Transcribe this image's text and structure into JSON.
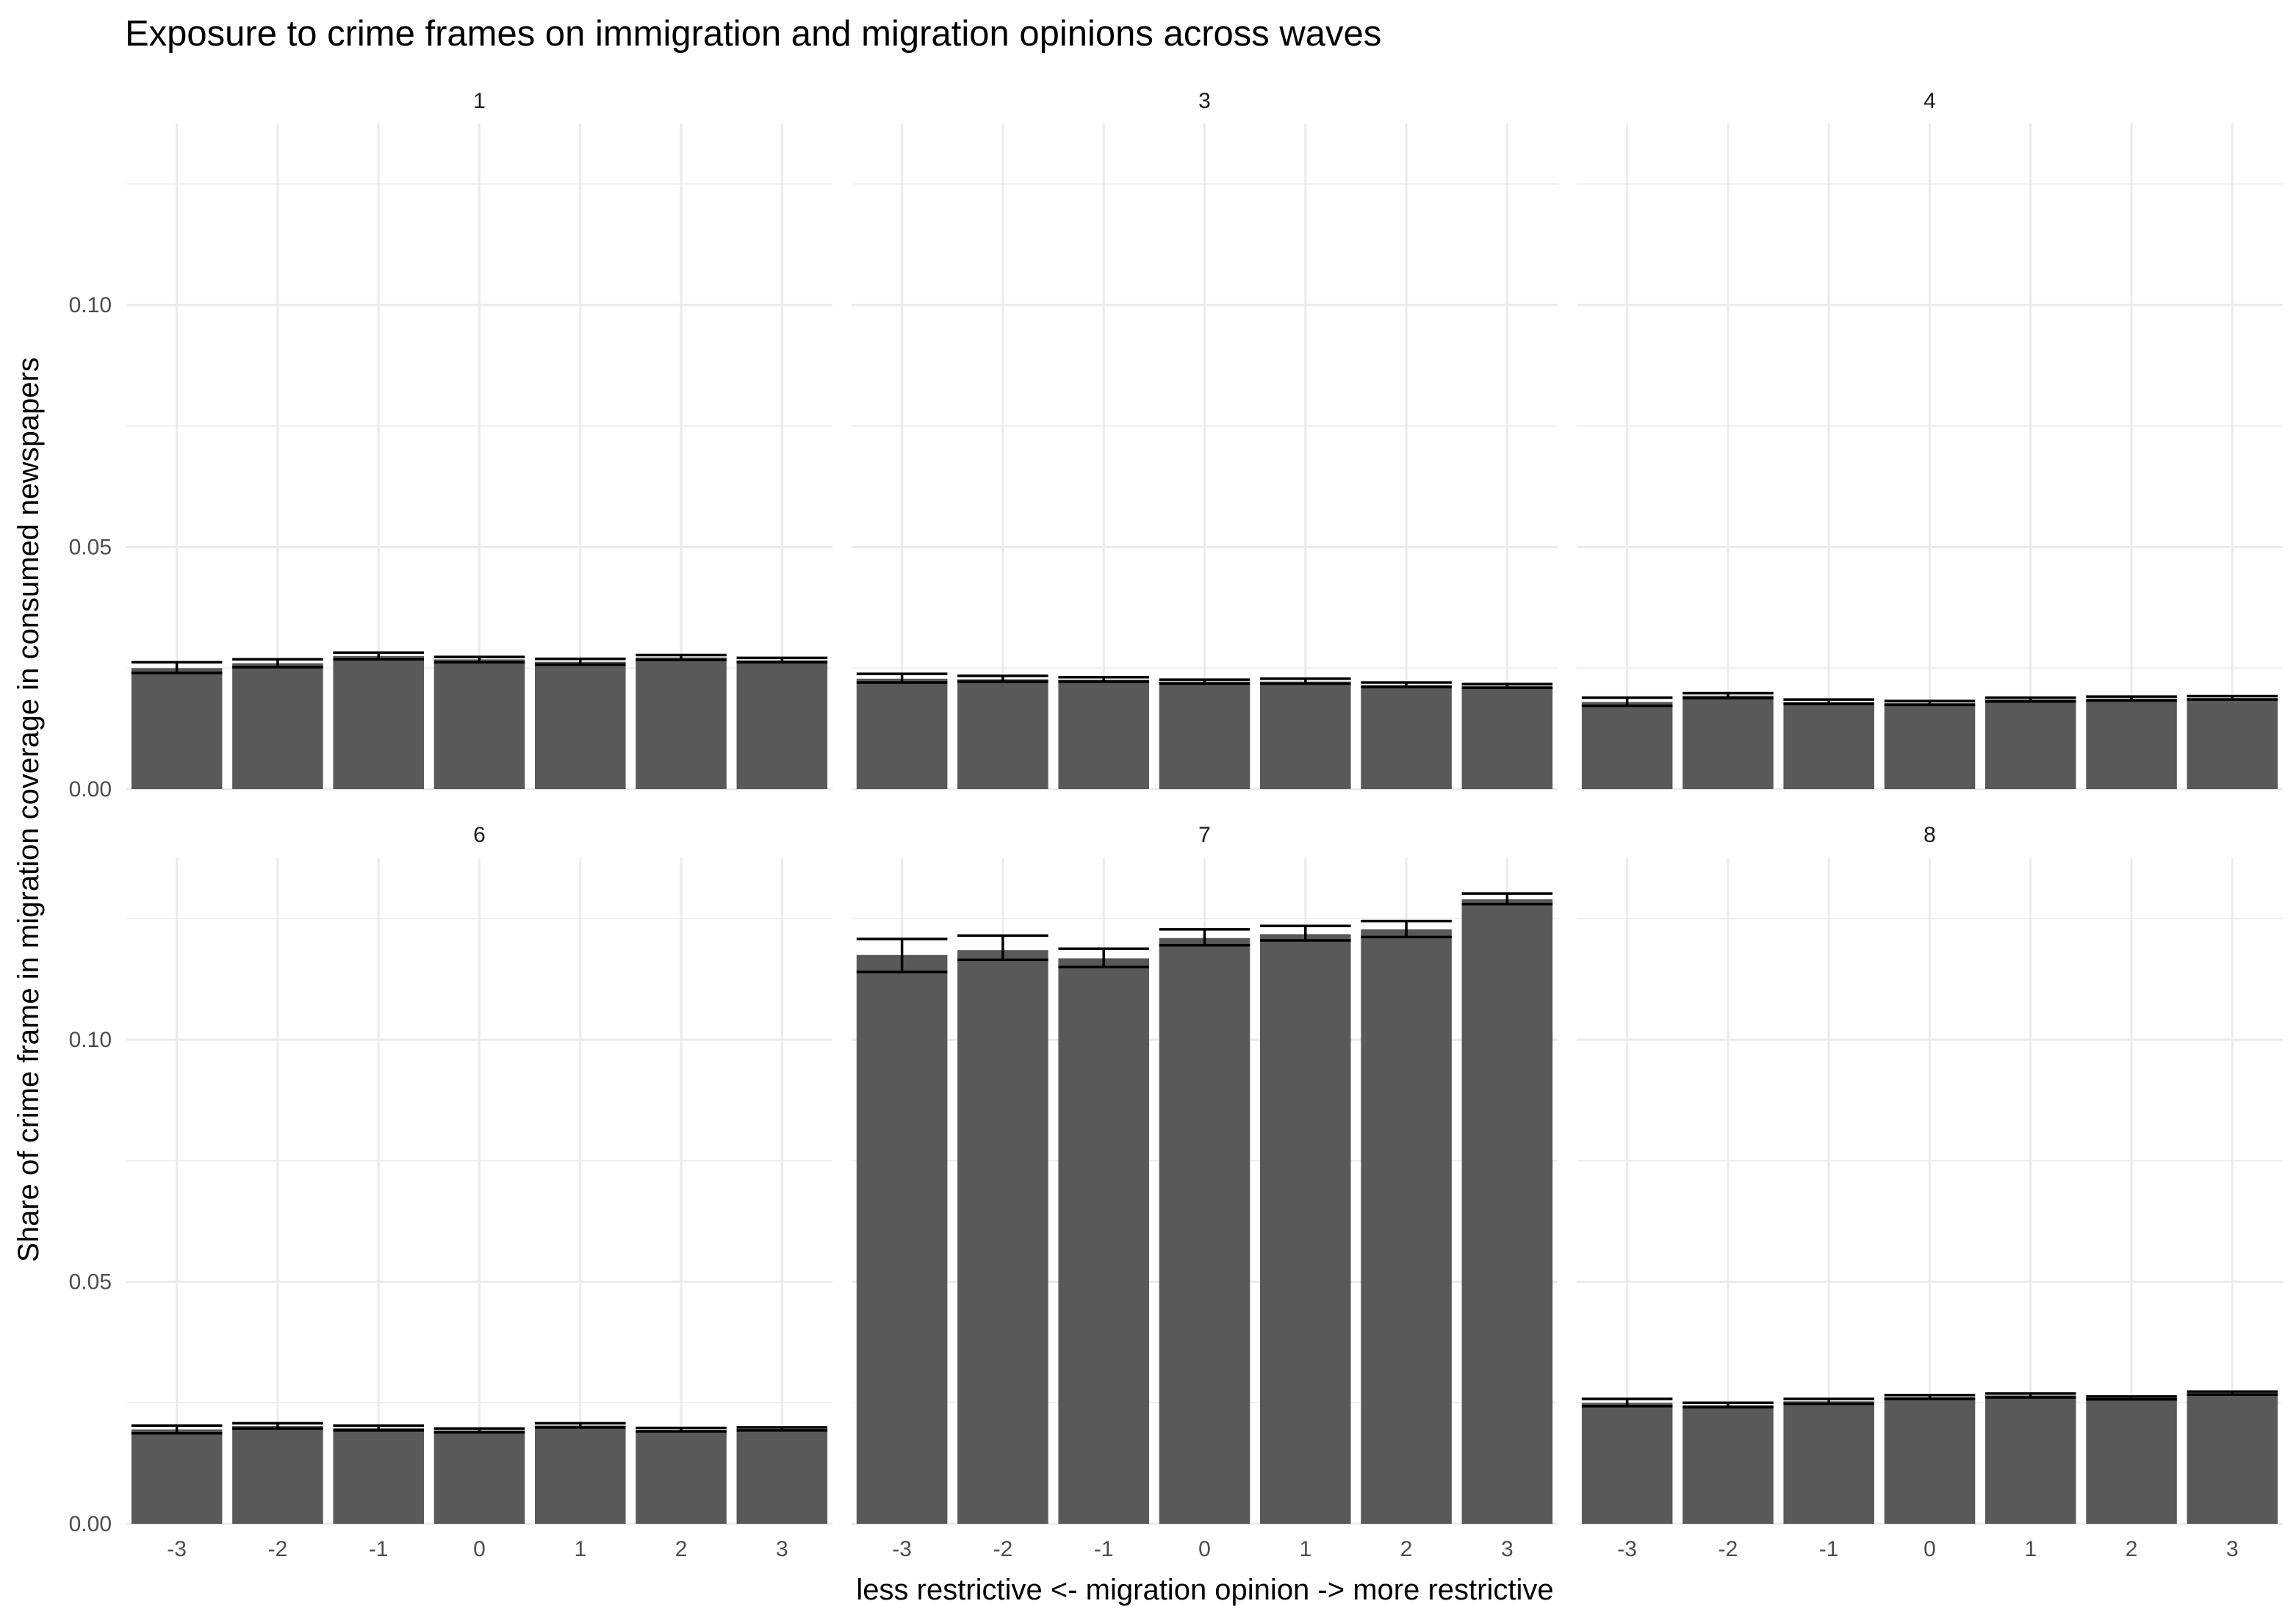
{
  "chart_data": {
    "type": "bar",
    "title": "Exposure to crime frames on immigration and migration opinions across waves",
    "xlabel": "less restrictive <- migration opinion -> more restrictive",
    "ylabel": "Share of crime frame in migration coverage in consumed newspapers",
    "categories": [
      "-3",
      "-2",
      "-1",
      "0",
      "1",
      "2",
      "3"
    ],
    "ylim": [
      0,
      0.1375
    ],
    "yticks": [
      0.0,
      0.05,
      0.1
    ],
    "ytick_labels": [
      "0.00",
      "0.05",
      "0.10"
    ],
    "grid": true,
    "facets": [
      {
        "label": "1",
        "values": [
          0.025,
          0.026,
          0.0275,
          0.0268,
          0.0263,
          0.0272,
          0.0266
        ],
        "errors": [
          [
            0.024,
            0.0262
          ],
          [
            0.0252,
            0.0268
          ],
          [
            0.0268,
            0.0282
          ],
          [
            0.0262,
            0.0273
          ],
          [
            0.0257,
            0.0269
          ],
          [
            0.0267,
            0.0277
          ],
          [
            0.0262,
            0.0271
          ]
        ]
      },
      {
        "label": "3",
        "values": [
          0.0228,
          0.0227,
          0.0226,
          0.0222,
          0.0222,
          0.0215,
          0.0213
        ],
        "errors": [
          [
            0.022,
            0.0238
          ],
          [
            0.0222,
            0.0234
          ],
          [
            0.0222,
            0.0231
          ],
          [
            0.0218,
            0.0226
          ],
          [
            0.0218,
            0.0228
          ],
          [
            0.0211,
            0.022
          ],
          [
            0.0209,
            0.0217
          ]
        ]
      },
      {
        "label": "4",
        "values": [
          0.018,
          0.0193,
          0.018,
          0.0178,
          0.0185,
          0.0187,
          0.0188
        ],
        "errors": [
          [
            0.0172,
            0.0189
          ],
          [
            0.0188,
            0.0198
          ],
          [
            0.0176,
            0.0185
          ],
          [
            0.0174,
            0.0182
          ],
          [
            0.0181,
            0.0189
          ],
          [
            0.0183,
            0.0191
          ],
          [
            0.0185,
            0.0192
          ]
        ]
      },
      {
        "label": "6",
        "values": [
          0.0195,
          0.0202,
          0.0198,
          0.0193,
          0.0203,
          0.0194,
          0.0196
        ],
        "errors": [
          [
            0.0187,
            0.0203
          ],
          [
            0.0197,
            0.0208
          ],
          [
            0.0193,
            0.0203
          ],
          [
            0.0189,
            0.0197
          ],
          [
            0.0199,
            0.0208
          ],
          [
            0.0191,
            0.0198
          ],
          [
            0.0193,
            0.0199
          ]
        ]
      },
      {
        "label": "7",
        "values": [
          0.1175,
          0.1185,
          0.1168,
          0.121,
          0.1218,
          0.1228,
          0.129
        ],
        "errors": [
          [
            0.114,
            0.1208
          ],
          [
            0.1165,
            0.1215
          ],
          [
            0.115,
            0.1188
          ],
          [
            0.1195,
            0.1228
          ],
          [
            0.1205,
            0.1235
          ],
          [
            0.1212,
            0.1245
          ],
          [
            0.128,
            0.1302
          ]
        ]
      },
      {
        "label": "8",
        "values": [
          0.025,
          0.0245,
          0.0253,
          0.0262,
          0.0265,
          0.026,
          0.027
        ],
        "errors": [
          [
            0.0243,
            0.0258
          ],
          [
            0.0241,
            0.025
          ],
          [
            0.0248,
            0.0258
          ],
          [
            0.0258,
            0.0266
          ],
          [
            0.0261,
            0.0269
          ],
          [
            0.0257,
            0.0263
          ],
          [
            0.0267,
            0.0273
          ]
        ]
      }
    ]
  }
}
